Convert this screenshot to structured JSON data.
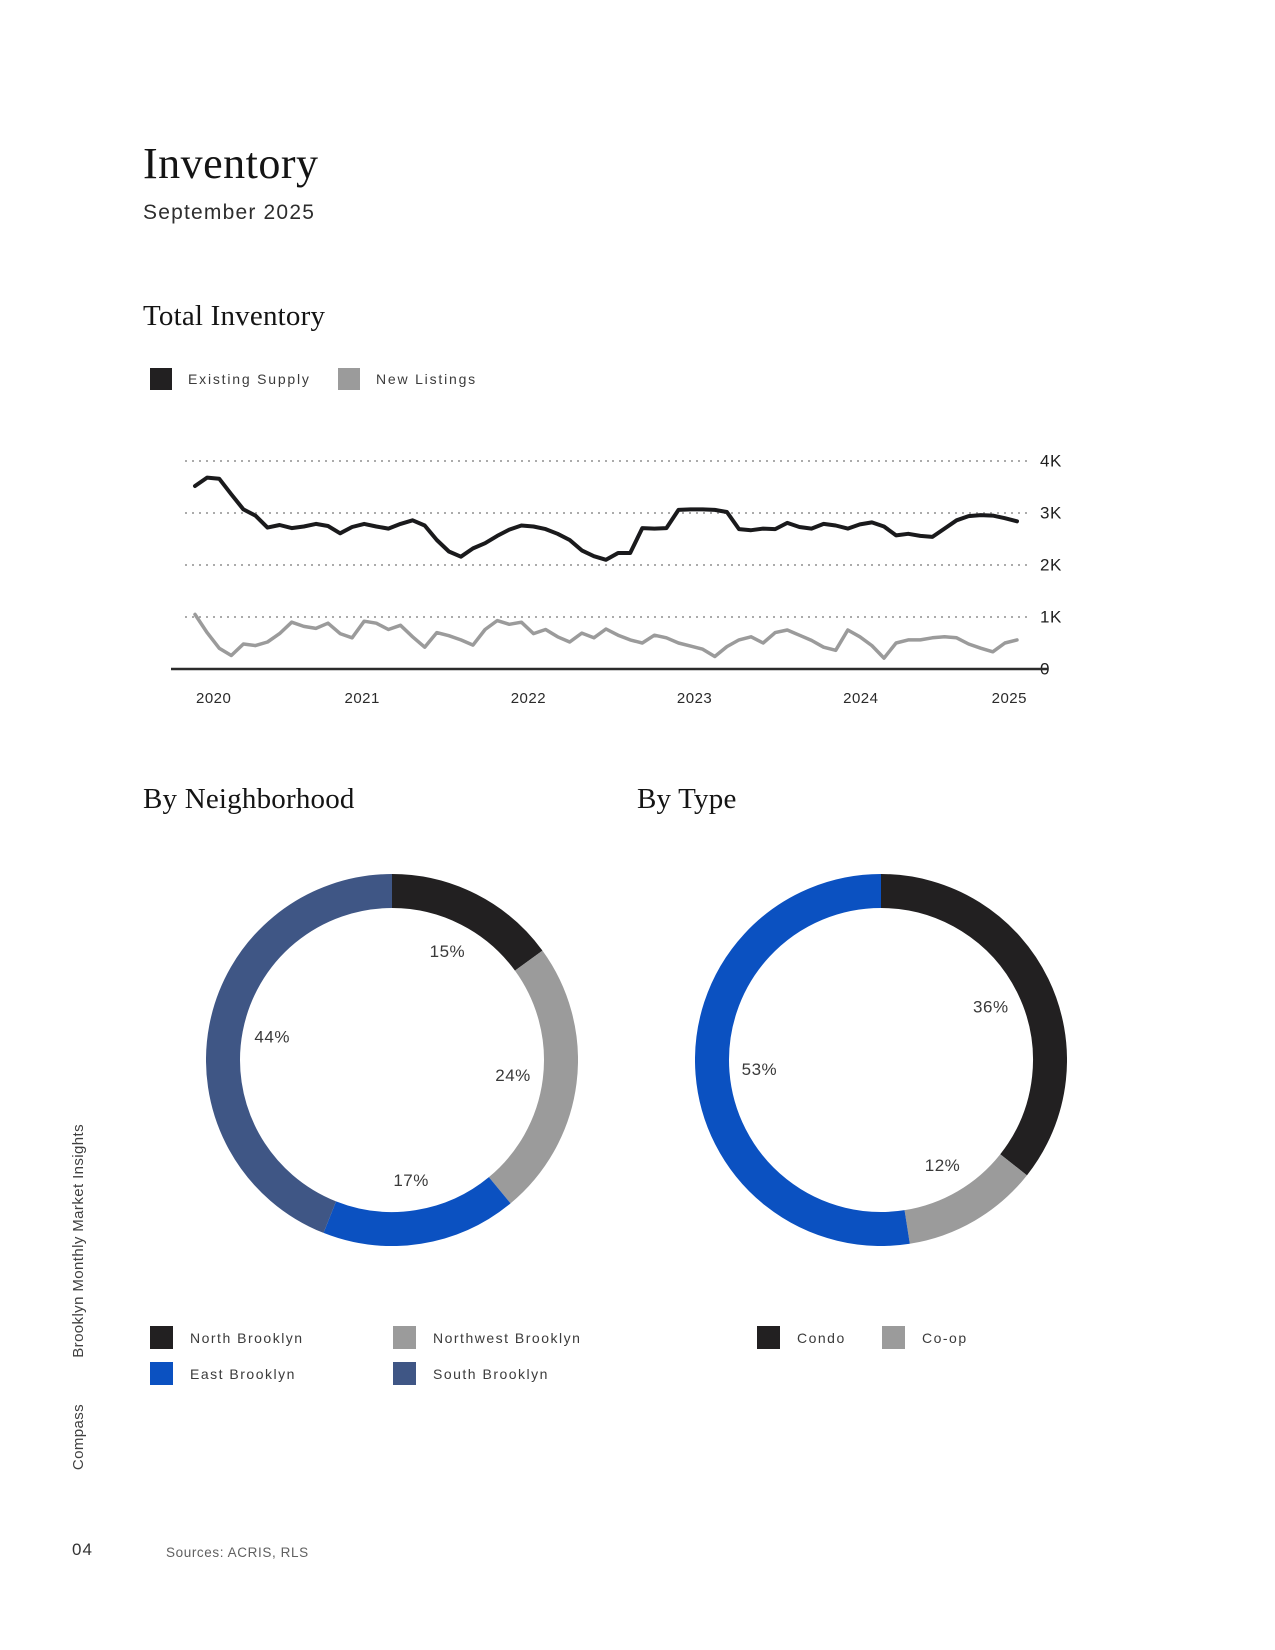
{
  "header": {
    "title": "Inventory",
    "subtitle": "September 2025"
  },
  "sections": {
    "total_inventory": {
      "heading": "Total Inventory",
      "legend": [
        {
          "label": "Existing Supply",
          "color": "#222021"
        },
        {
          "label": "New Listings",
          "color": "#9b9b9b"
        }
      ]
    },
    "by_neighborhood": {
      "heading": "By Neighborhood",
      "legend": [
        {
          "label": "North Brooklyn",
          "color": "#222021"
        },
        {
          "label": "Northwest Brooklyn",
          "color": "#9b9b9b"
        },
        {
          "label": "East Brooklyn",
          "color": "#0b51c1"
        },
        {
          "label": "South Brooklyn",
          "color": "#3f5685"
        }
      ]
    },
    "by_type": {
      "heading": "By Type",
      "legend": [
        {
          "label": "Condo",
          "color": "#222021"
        },
        {
          "label": "Co-op",
          "color": "#9b9b9b"
        }
      ]
    }
  },
  "sidebar": {
    "report_name": "Brooklyn Monthly Market Insights",
    "brand": "Compass"
  },
  "footer": {
    "page_number": "04",
    "sources": "Sources: ACRIS, RLS"
  },
  "colors": {
    "dark": "#222021",
    "gray": "#9b9b9b",
    "blue": "#0b51c1",
    "slate": "#3f5685",
    "grid": "#ababab",
    "axis": "#2b2b2b",
    "tick_text": "#1f1f1f"
  },
  "chart_data": [
    {
      "type": "line",
      "title": "Total Inventory",
      "x_start": "2020-01",
      "x_end": "2025-09",
      "xticks": [
        "2020",
        "2021",
        "2022",
        "2023",
        "2024",
        "2025"
      ],
      "yticks": [
        "4K",
        "3K",
        "2K",
        "1K",
        "0"
      ],
      "ytick_values": [
        4000,
        3000,
        2000,
        1000,
        0
      ],
      "ylim": [
        0,
        4400
      ],
      "grid": "horizontal-dotted",
      "legend_position": "top-left",
      "series": [
        {
          "name": "Existing Supply",
          "color": "#1a1a1c",
          "values": [
            3520,
            3680,
            3660,
            3360,
            3070,
            2950,
            2720,
            2770,
            2710,
            2740,
            2790,
            2750,
            2610,
            2730,
            2790,
            2740,
            2700,
            2790,
            2860,
            2760,
            2480,
            2260,
            2160,
            2320,
            2420,
            2560,
            2680,
            2760,
            2740,
            2690,
            2600,
            2480,
            2280,
            2170,
            2100,
            2230,
            2230,
            2710,
            2700,
            2710,
            3060,
            3070,
            3070,
            3060,
            3020,
            2690,
            2670,
            2700,
            2690,
            2810,
            2730,
            2700,
            2790,
            2760,
            2700,
            2780,
            2820,
            2740,
            2570,
            2600,
            2560,
            2540,
            2700,
            2860,
            2940,
            2960,
            2950,
            2900,
            2840
          ]
        },
        {
          "name": "New Listings",
          "color": "#9b9b9b",
          "values": [
            1050,
            700,
            400,
            260,
            480,
            450,
            520,
            680,
            900,
            820,
            780,
            880,
            680,
            600,
            920,
            880,
            760,
            840,
            620,
            420,
            700,
            640,
            560,
            460,
            760,
            930,
            860,
            900,
            680,
            760,
            620,
            520,
            690,
            600,
            770,
            650,
            560,
            500,
            650,
            600,
            500,
            440,
            380,
            240,
            430,
            560,
            620,
            500,
            700,
            750,
            650,
            550,
            420,
            360,
            750,
            620,
            450,
            210,
            500,
            560,
            560,
            600,
            620,
            600,
            480,
            400,
            330,
            500,
            560
          ]
        }
      ]
    },
    {
      "type": "donut",
      "title": "By Neighborhood",
      "start_angle_deg": 0,
      "direction": "clockwise",
      "segments": [
        {
          "label": "North Brooklyn",
          "value_pct": 15,
          "color": "#222021"
        },
        {
          "label": "Northwest Brooklyn",
          "value_pct": 24,
          "color": "#9b9b9b"
        },
        {
          "label": "East Brooklyn",
          "value_pct": 17,
          "color": "#0b51c1"
        },
        {
          "label": "South Brooklyn",
          "value_pct": 44,
          "color": "#3f5685"
        }
      ]
    },
    {
      "type": "donut",
      "title": "By Type",
      "start_angle_deg": 0,
      "direction": "clockwise",
      "segments": [
        {
          "label": "Condo",
          "value_pct": 36,
          "color": "#222021"
        },
        {
          "label": "Co-op",
          "value_pct": 12,
          "color": "#9b9b9b"
        },
        {
          "label": "",
          "value_pct": 53,
          "color": "#0b51c1"
        }
      ]
    }
  ]
}
